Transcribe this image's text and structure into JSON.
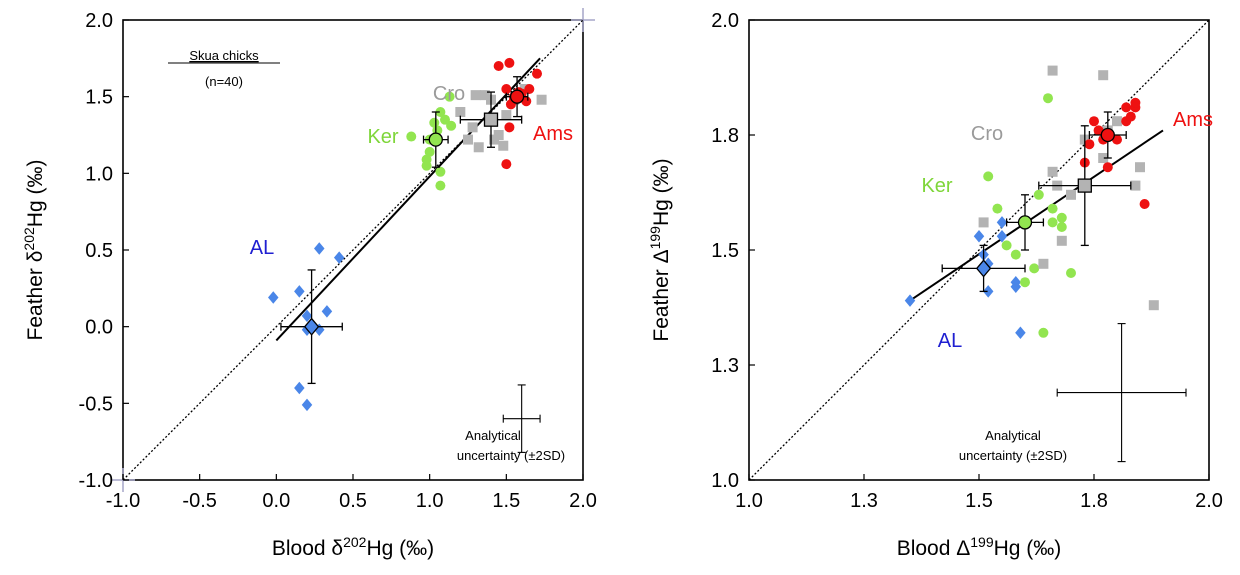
{
  "chart_data": [
    {
      "type": "scatter",
      "xlabel": "Blood δ202Hg (‰)",
      "xlabel_parts": {
        "pre": "Blood δ",
        "sup": "202",
        "post": "Hg (‰)"
      },
      "ylabel": "Feather δ202Hg (‰)",
      "ylabel_parts": {
        "pre": "Feather δ",
        "sup": "202",
        "post": "Hg (‰)"
      },
      "xlim": [
        -1.0,
        2.0
      ],
      "ylim": [
        -1.0,
        2.0
      ],
      "xticks": [
        -1.0,
        -0.5,
        0.0,
        0.5,
        1.0,
        1.5,
        2.0
      ],
      "yticks": [
        -1.0,
        -0.5,
        0.0,
        0.5,
        1.0,
        1.5,
        2.0
      ],
      "tick_labels_x": [
        "-1.0",
        "-0.5",
        "0.0",
        "0.5",
        "1.0",
        "1.5",
        "2.0"
      ],
      "tick_labels_y": [
        "-1.0",
        "-0.5",
        "0.0",
        "0.5",
        "1.0",
        "1.5",
        "2.0"
      ],
      "inset_title": "Skua chicks",
      "inset_n": "(n=40)",
      "uncertainty_label_1": "Analytical",
      "uncertainty_label_2": "uncertainty  (±2SD)",
      "uncertainty": {
        "x": 1.6,
        "y": -0.6,
        "xerr": 0.12,
        "yerr": 0.22
      },
      "one_to_one_line": [
        [
          -1.0,
          -1.0
        ],
        [
          2.0,
          2.0
        ]
      ],
      "regression_line": [
        [
          0.0,
          -0.09
        ],
        [
          1.72,
          1.75
        ]
      ],
      "groups": [
        {
          "label": "AL",
          "color": "#4a86e8",
          "label_color": "#1f1fd1",
          "marker": "diamond",
          "x": [
            -0.02,
            0.15,
            0.2,
            0.28,
            0.33,
            0.41,
            0.2,
            0.28,
            0.15,
            0.2
          ],
          "y": [
            0.19,
            0.23,
            0.07,
            0.51,
            0.1,
            0.45,
            -0.02,
            -0.02,
            -0.4,
            -0.51
          ],
          "mean": {
            "x": 0.23,
            "y": 0.0,
            "xerr": 0.2,
            "yerr": 0.37
          }
        },
        {
          "label": "Ker",
          "color": "#92e550",
          "label_color": "#7fd63a",
          "marker": "circle",
          "x": [
            0.88,
            0.98,
            1.0,
            1.03,
            1.05,
            1.07,
            1.1,
            1.13,
            1.14,
            1.07,
            1.07,
            0.98,
            1.0
          ],
          "y": [
            1.24,
            1.05,
            1.22,
            1.33,
            1.28,
            1.4,
            1.35,
            1.5,
            1.31,
            1.01,
            0.92,
            1.09,
            1.14
          ],
          "mean": {
            "x": 1.04,
            "y": 1.22,
            "xerr": 0.08,
            "yerr": 0.18
          }
        },
        {
          "label": "Cro",
          "color": "#b3b3b3",
          "label_color": "#9b9b9b",
          "marker": "square",
          "x": [
            1.2,
            1.25,
            1.32,
            1.36,
            1.4,
            1.3,
            1.48,
            1.42,
            1.5,
            1.55,
            1.62,
            1.73,
            1.28,
            1.45
          ],
          "y": [
            1.4,
            1.22,
            1.17,
            1.51,
            1.48,
            1.51,
            1.18,
            1.22,
            1.38,
            1.48,
            1.55,
            1.48,
            1.3,
            1.25
          ],
          "mean": {
            "x": 1.4,
            "y": 1.35,
            "xerr": 0.2,
            "yerr": 0.18
          }
        },
        {
          "label": "Ams",
          "color": "#ee1111",
          "label_color": "#ee1111",
          "marker": "circle",
          "x": [
            1.45,
            1.52,
            1.5,
            1.55,
            1.6,
            1.63,
            1.65,
            1.7,
            1.55,
            1.52,
            1.58,
            1.5,
            1.53
          ],
          "y": [
            1.7,
            1.72,
            1.55,
            1.5,
            1.52,
            1.47,
            1.55,
            1.65,
            1.48,
            1.3,
            1.53,
            1.06,
            1.45
          ],
          "mean": {
            "x": 1.57,
            "y": 1.5,
            "xerr": 0.07,
            "yerr": 0.13
          }
        }
      ]
    },
    {
      "type": "scatter",
      "xlabel": "Blood Δ199Hg (‰)",
      "xlabel_parts": {
        "pre": "Blood Δ",
        "sup": "199",
        "post": "Hg (‰)"
      },
      "ylabel": "Feather Δ199Hg (‰)",
      "ylabel_parts": {
        "pre": "Feather Δ",
        "sup": "199",
        "post": "Hg (‰)"
      },
      "xlim": [
        1.0,
        2.0
      ],
      "ylim": [
        1.0,
        2.0
      ],
      "xticks": [
        1.0,
        1.25,
        1.5,
        1.75,
        2.0
      ],
      "yticks": [
        1.0,
        1.25,
        1.5,
        1.75,
        2.0
      ],
      "tick_labels_x": [
        "1.0",
        "1.3",
        "1.5",
        "1.8",
        "2.0"
      ],
      "tick_labels_y": [
        "1.0",
        "1.3",
        "1.5",
        "1.8",
        "2.0"
      ],
      "uncertainty_label_1": "Analytical",
      "uncertainty_label_2": "uncertainty  (±2SD)",
      "uncertainty": {
        "x": 1.81,
        "y": 1.19,
        "xerr": 0.14,
        "yerr": 0.15
      },
      "one_to_one_line": [
        [
          1.0,
          1.0
        ],
        [
          2.0,
          2.0
        ]
      ],
      "regression_line": [
        [
          1.35,
          1.39
        ],
        [
          1.9,
          1.76
        ]
      ],
      "groups": [
        {
          "label": "AL",
          "color": "#4a86e8",
          "label_color": "#1f1fd1",
          "marker": "diamond",
          "x": [
            1.35,
            1.5,
            1.52,
            1.55,
            1.55,
            1.52,
            1.58,
            1.51,
            1.58,
            1.59
          ],
          "y": [
            1.39,
            1.53,
            1.47,
            1.56,
            1.53,
            1.41,
            1.43,
            1.49,
            1.42,
            1.32
          ],
          "mean": {
            "x": 1.51,
            "y": 1.46,
            "xerr": 0.09,
            "yerr": 0.05
          }
        },
        {
          "label": "Ker",
          "color": "#92e550",
          "label_color": "#7fd63a",
          "marker": "circle",
          "x": [
            1.52,
            1.54,
            1.56,
            1.58,
            1.6,
            1.62,
            1.63,
            1.65,
            1.66,
            1.66,
            1.68,
            1.68,
            1.7,
            1.64
          ],
          "y": [
            1.66,
            1.59,
            1.51,
            1.49,
            1.43,
            1.46,
            1.62,
            1.83,
            1.59,
            1.56,
            1.55,
            1.57,
            1.45,
            1.32
          ],
          "mean": {
            "x": 1.6,
            "y": 1.56,
            "xerr": 0.04,
            "yerr": 0.06
          }
        },
        {
          "label": "Cro",
          "color": "#b3b3b3",
          "label_color": "#9b9b9b",
          "marker": "square",
          "x": [
            1.51,
            1.66,
            1.67,
            1.66,
            1.7,
            1.73,
            1.77,
            1.78,
            1.77,
            1.8,
            1.84,
            1.85,
            1.88,
            1.64,
            1.68
          ],
          "y": [
            1.56,
            1.67,
            1.64,
            1.89,
            1.62,
            1.74,
            1.88,
            1.76,
            1.7,
            1.78,
            1.64,
            1.68,
            1.38,
            1.47,
            1.52
          ],
          "mean": {
            "x": 1.73,
            "y": 1.64,
            "xerr": 0.1,
            "yerr": 0.13
          }
        },
        {
          "label": "Ams",
          "color": "#ee1111",
          "label_color": "#ee1111",
          "marker": "circle",
          "x": [
            1.73,
            1.74,
            1.75,
            1.76,
            1.77,
            1.78,
            1.8,
            1.82,
            1.82,
            1.83,
            1.84,
            1.84,
            1.86
          ],
          "y": [
            1.69,
            1.73,
            1.78,
            1.76,
            1.74,
            1.68,
            1.74,
            1.78,
            1.81,
            1.79,
            1.81,
            1.82,
            1.6
          ],
          "mean": {
            "x": 1.78,
            "y": 1.75,
            "xerr": 0.04,
            "yerr": 0.05
          }
        }
      ]
    }
  ]
}
